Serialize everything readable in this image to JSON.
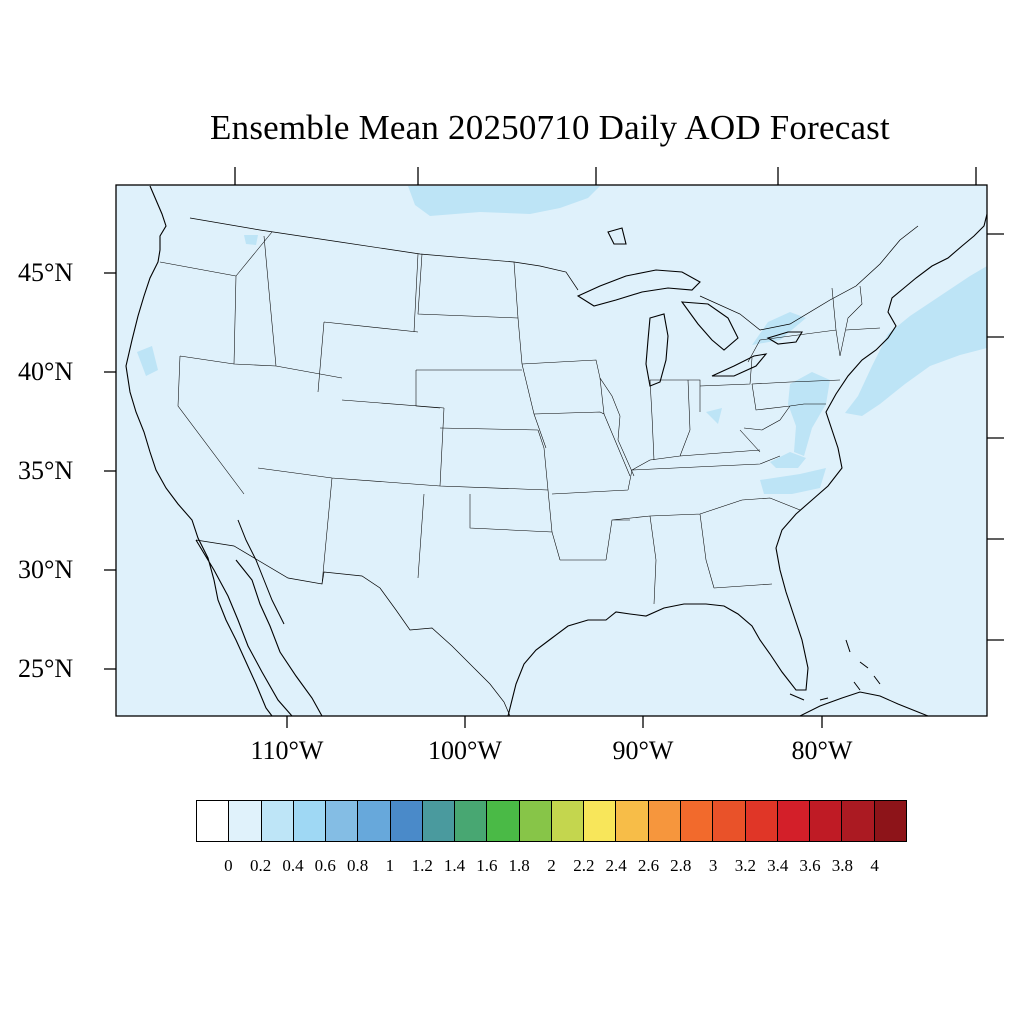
{
  "title": "Ensemble Mean 20250710 Daily AOD Forecast",
  "map": {
    "projection": "Lambert conformal (CONUS)",
    "lat_labels": [
      "45°N",
      "40°N",
      "35°N",
      "30°N",
      "25°N"
    ],
    "lon_labels": [
      "110°W",
      "100°W",
      "90°W",
      "80°W"
    ],
    "background_fill_color": "#dff1fb",
    "elevated_aod_color": "#bde4f6",
    "line_color": "#000000",
    "regions_of_higher_aod": [
      "Northeast US coast / Atlantic",
      "Mid-Atlantic",
      "Southern Canada (north of Minnesota)",
      "Northern California coast",
      "Carolinas"
    ]
  },
  "colorbar": {
    "labels": [
      "0",
      "0.2",
      "0.4",
      "0.6",
      "0.8",
      "1",
      "1.2",
      "1.4",
      "1.6",
      "1.8",
      "2",
      "2.2",
      "2.4",
      "2.6",
      "2.8",
      "3",
      "3.2",
      "3.4",
      "3.6",
      "3.8",
      "4"
    ],
    "colors": [
      "#ffffff",
      "#e0f2fb",
      "#bee5f7",
      "#9fd8f4",
      "#84bde4",
      "#67a8db",
      "#4a8ac9",
      "#4a9a9e",
      "#48a772",
      "#4aba46",
      "#87c548",
      "#c4d64e",
      "#f8e65a",
      "#f7bd48",
      "#f6963d",
      "#f26a2c",
      "#e95229",
      "#e03627",
      "#d31f29",
      "#bf1b25",
      "#ab1a22",
      "#8d1419"
    ]
  }
}
